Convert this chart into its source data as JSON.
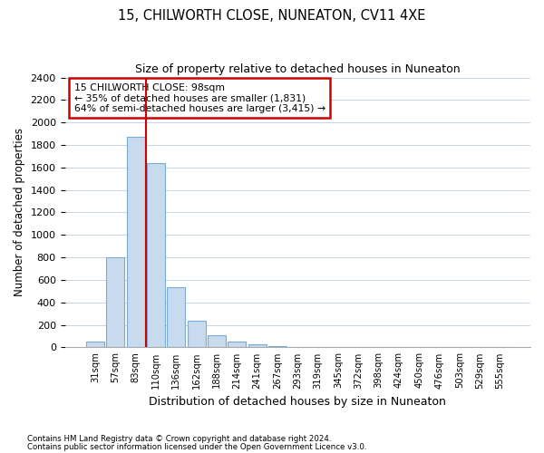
{
  "title": "15, CHILWORTH CLOSE, NUNEATON, CV11 4XE",
  "subtitle": "Size of property relative to detached houses in Nuneaton",
  "xlabel": "Distribution of detached houses by size in Nuneaton",
  "ylabel": "Number of detached properties",
  "footnote1": "Contains HM Land Registry data © Crown copyright and database right 2024.",
  "footnote2": "Contains public sector information licensed under the Open Government Licence v3.0.",
  "bar_color": "#c8daee",
  "bar_edge_color": "#7aadd4",
  "grid_color": "#c8d4e8",
  "annotation_box_color": "#cc0000",
  "vline_color": "#cc0000",
  "annotation_line1": "15 CHILWORTH CLOSE: 98sqm",
  "annotation_line2": "← 35% of detached houses are smaller (1,831)",
  "annotation_line3": "64% of semi-detached houses are larger (3,415) →",
  "categories": [
    "31sqm",
    "57sqm",
    "83sqm",
    "110sqm",
    "136sqm",
    "162sqm",
    "188sqm",
    "214sqm",
    "241sqm",
    "267sqm",
    "293sqm",
    "319sqm",
    "345sqm",
    "372sqm",
    "398sqm",
    "424sqm",
    "450sqm",
    "476sqm",
    "503sqm",
    "529sqm",
    "555sqm"
  ],
  "values": [
    50,
    800,
    1870,
    1640,
    535,
    235,
    105,
    50,
    30,
    15,
    5,
    0,
    0,
    0,
    0,
    0,
    0,
    0,
    0,
    0,
    0
  ],
  "ylim": [
    0,
    2400
  ],
  "yticks": [
    0,
    200,
    400,
    600,
    800,
    1000,
    1200,
    1400,
    1600,
    1800,
    2000,
    2200,
    2400
  ],
  "background_color": "#ffffff",
  "plot_bg_color": "#ffffff",
  "vline_x_index": 2.85
}
